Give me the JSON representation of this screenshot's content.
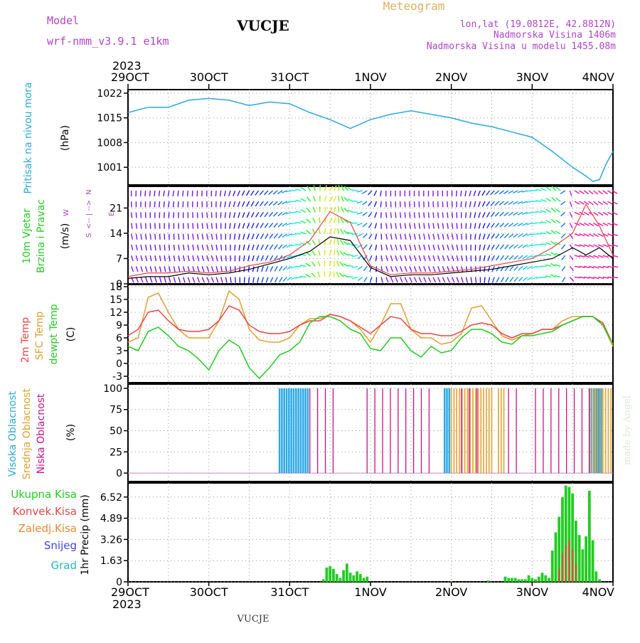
{
  "header": {
    "model_label": "Model",
    "model_name": "wrf-nmm_v3.9.1  e1km",
    "station": "VUCJE",
    "product": "Meteogram",
    "lonlat": "lon,lat (19.0812E, 42.8812N)",
    "elevation": "Nadmorska Visina 1406m",
    "model_elevation": "Nadmorska Visina u modelu 1455.08m",
    "footer_station": "VUCJE",
    "credit": "made by Angel"
  },
  "time_axis": {
    "year": "2023",
    "ticks": [
      "29OCT",
      "30OCT",
      "31OCT",
      "1NOV",
      "2NOV",
      "3NOV",
      "4NOV"
    ],
    "hours_total": 144,
    "tick_hours": [
      0,
      24,
      48,
      72,
      96,
      120,
      144
    ]
  },
  "colors": {
    "pressure": "#2aa8e6",
    "temp2m": "#ee4444",
    "sfc_temp": "#e0a030",
    "dewpt": "#22cc22",
    "high_cloud": "#2aa8e6",
    "mid_cloud": "#e0a030",
    "low_cloud": "#cc1188",
    "total_precip": "#22cc22",
    "conv_precip": "#ee4444",
    "frozen_precip": "#ee8833",
    "snow": "#4444dd",
    "hail": "#22bbbb",
    "purple_text": "#b044cc",
    "orange_text": "#e0b060"
  },
  "panels": {
    "pressure": {
      "ylabel1": "Pritisak na nivou mora",
      "ylabel2": "(hPa)",
      "ticks": [
        "1022",
        "1015",
        "1008",
        "1001"
      ]
    },
    "wind": {
      "ylabel1": "10m Vjetar",
      "ylabel2": "Brzina i Pravac",
      "unit": "(m/s)",
      "ticks": [
        "21",
        "14",
        "7",
        "0"
      ],
      "compass": {
        "n": "N",
        "w": "W",
        "e": "E",
        "s": "S"
      }
    },
    "temp": {
      "ylabel1": "2m Temp",
      "ylabel2": "SFC Temp",
      "ylabel3": "dewpt Temp",
      "unit": "(C)",
      "ticks": [
        "18",
        "15",
        "12",
        "9",
        "6",
        "3",
        "0",
        "-3"
      ]
    },
    "cloud": {
      "ylabel1": "Visoka Oblacnost",
      "ylabel2": "Srednja Oblacnost",
      "ylabel3": "Niska Oblacnost",
      "unit": "(%)",
      "ticks": [
        "100",
        "75",
        "50",
        "25",
        "0"
      ]
    },
    "precip": {
      "legend": [
        "Ukupna Kisa",
        "Konvek.Kisa",
        "Zaledj.Kisa",
        "Snijeg",
        "Grad"
      ],
      "ylabel": "1hr Precip (mm)",
      "ticks": [
        "6.52",
        "4.89",
        "3.26",
        "1.63",
        "0"
      ]
    }
  },
  "chart_data": [
    {
      "type": "line",
      "name": "pressure",
      "ylim": [
        996,
        1023
      ],
      "x": [
        0,
        6,
        12,
        18,
        24,
        30,
        36,
        42,
        48,
        54,
        60,
        66,
        72,
        78,
        84,
        90,
        96,
        102,
        108,
        114,
        120,
        126,
        132,
        136,
        138,
        140,
        142,
        144
      ],
      "y": [
        1016.5,
        1018,
        1018,
        1020,
        1020.5,
        1020,
        1018.5,
        1019.5,
        1019,
        1016.5,
        1014.5,
        1012,
        1014.5,
        1016,
        1017,
        1016,
        1015,
        1013.5,
        1012.5,
        1011,
        1009.5,
        1005.5,
        1001,
        998.5,
        997,
        997.5,
        1002,
        1005.5
      ]
    },
    {
      "type": "line",
      "name": "wind_speed",
      "ylim": [
        0,
        27
      ],
      "x": [
        0,
        6,
        12,
        18,
        24,
        30,
        36,
        42,
        48,
        54,
        60,
        66,
        72,
        78,
        84,
        90,
        96,
        102,
        108,
        114,
        120,
        126,
        132,
        136,
        140,
        144
      ],
      "speed_a": [
        2,
        3,
        3,
        3.5,
        3,
        3.5,
        5,
        6,
        8,
        12,
        20,
        17,
        5,
        2.5,
        3,
        3,
        3.5,
        4,
        5,
        6,
        7,
        10,
        14,
        22,
        16,
        8
      ],
      "speed_b": [
        1.5,
        2,
        2,
        3,
        2.5,
        3,
        4,
        5.5,
        7,
        9,
        13,
        12,
        4.5,
        2,
        2.5,
        2.5,
        3,
        3.5,
        4,
        5,
        6,
        7,
        10,
        8,
        10,
        7
      ]
    },
    {
      "type": "line",
      "name": "temperatures",
      "ylim": [
        -4.5,
        18.5
      ],
      "x": [
        0,
        3,
        6,
        9,
        12,
        15,
        18,
        21,
        24,
        27,
        30,
        33,
        36,
        39,
        42,
        45,
        48,
        51,
        54,
        57,
        60,
        63,
        66,
        69,
        72,
        75,
        78,
        81,
        84,
        87,
        90,
        93,
        96,
        99,
        102,
        105,
        108,
        111,
        114,
        117,
        120,
        123,
        126,
        129,
        132,
        135,
        138,
        141,
        144
      ],
      "series": [
        {
          "name": "2m Temp",
          "values": [
            6.5,
            8,
            12,
            12.5,
            10,
            8,
            7.5,
            7.5,
            8,
            10,
            13.5,
            12.5,
            9,
            7.5,
            7,
            7,
            7.5,
            9,
            10,
            10,
            11.5,
            11,
            10,
            8.5,
            7,
            9,
            11,
            10.5,
            8,
            7,
            7,
            6.5,
            6.5,
            7.5,
            9,
            9.5,
            9,
            7,
            6,
            7,
            7,
            8,
            8,
            9,
            10,
            11,
            11,
            9.5,
            4.5
          ]
        },
        {
          "name": "SFC Temp",
          "values": [
            5,
            6,
            15.5,
            16.5,
            12,
            8,
            6,
            6,
            6,
            10,
            17,
            15,
            8,
            5.5,
            5,
            5,
            6,
            9,
            10.5,
            10.5,
            11.5,
            11,
            10,
            8,
            5,
            9,
            14,
            14,
            8,
            6,
            6,
            4.5,
            5,
            7,
            13,
            13.5,
            10,
            6.5,
            5.5,
            6.5,
            7,
            8,
            8,
            10,
            11,
            11,
            11,
            9,
            4
          ]
        },
        {
          "name": "dewpt Temp",
          "values": [
            4,
            3,
            7.5,
            8.5,
            6.5,
            4,
            3,
            1,
            -1.5,
            3,
            5.5,
            4,
            -1,
            -3.5,
            -1,
            2,
            3,
            5,
            9.5,
            11,
            11,
            10,
            8,
            7,
            3.5,
            3,
            6,
            6,
            3,
            1.5,
            4,
            2.5,
            3,
            6,
            8,
            8,
            7,
            5,
            4.5,
            6.5,
            6.5,
            7,
            7.5,
            9,
            10,
            11,
            11,
            9,
            4.5
          ]
        }
      ]
    },
    {
      "type": "bar",
      "name": "cloud_cover",
      "ylim": [
        0,
        100
      ],
      "high_cloud_hours": [
        [
          45,
          54
        ],
        [
          94,
          96
        ],
        [
          137,
          141
        ]
      ],
      "mid_cloud_hours": [
        [
          96,
          108
        ],
        [
          110,
          112
        ],
        [
          137,
          144
        ]
      ],
      "low_cloud_hours": [
        [
          54,
          62
        ],
        [
          71,
          90
        ],
        [
          99,
          104
        ],
        [
          113,
          116
        ],
        [
          121,
          138
        ]
      ]
    },
    {
      "type": "bar",
      "name": "precip",
      "ylim": [
        0,
        7.6
      ],
      "total_x": [
        58,
        59,
        60,
        61,
        62,
        63,
        64,
        65,
        66,
        67,
        68,
        69,
        70,
        71,
        96,
        107,
        112,
        113,
        114,
        115,
        116,
        117,
        118,
        119,
        120,
        121,
        122,
        123,
        124,
        125,
        126,
        127,
        128,
        129,
        130,
        131,
        132,
        133,
        134,
        135,
        136,
        137,
        138,
        139,
        140
      ],
      "total_values": [
        0.2,
        1.1,
        1.2,
        1.0,
        0.6,
        0.3,
        0.9,
        1.4,
        0.7,
        0.5,
        0.8,
        0.6,
        0.3,
        0.4,
        0.05,
        0.1,
        0.4,
        0.3,
        0.3,
        0.3,
        0.2,
        0.2,
        0.2,
        0.5,
        0.3,
        0.2,
        0.4,
        0.7,
        0.5,
        0.3,
        2.4,
        3.8,
        5.0,
        6.5,
        7.4,
        7.3,
        6.8,
        4.7,
        3.6,
        2.5,
        3.5,
        7.0,
        3.2,
        0.8,
        0.2
      ],
      "conv_x": [
        128,
        129,
        130,
        131,
        132,
        133
      ],
      "conv_values": [
        1.0,
        2.2,
        2.8,
        3.2,
        2.5,
        1.4
      ]
    }
  ]
}
